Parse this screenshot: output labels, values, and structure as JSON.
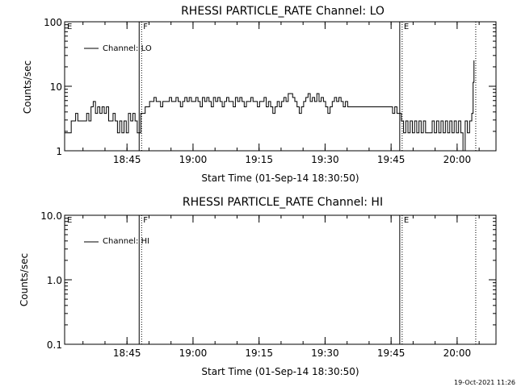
{
  "footer_timestamp": "19-Oct-2021 11:26",
  "chart_data": [
    {
      "type": "line",
      "title": "RHESSI PARTICLE_RATE Channel: LO",
      "xlabel": "Start Time (01-Sep-14 18:30:50)",
      "ylabel": "Counts/sec",
      "yscale": "log",
      "ylim": [
        1,
        100
      ],
      "xlim_minutes": [
        0,
        98
      ],
      "x_ticks": [
        {
          "minute": 14.17,
          "label": "18:45"
        },
        {
          "minute": 29.17,
          "label": "19:00"
        },
        {
          "minute": 44.17,
          "label": "19:15"
        },
        {
          "minute": 59.17,
          "label": "19:30"
        },
        {
          "minute": 74.17,
          "label": "19:45"
        },
        {
          "minute": 89.17,
          "label": "20:00"
        }
      ],
      "y_ticks": [
        {
          "value": 1,
          "label": "1"
        },
        {
          "value": 10,
          "label": "10"
        },
        {
          "value": 100,
          "label": "100"
        }
      ],
      "legend": {
        "placement": "top-left",
        "entries": [
          "Channel: LO"
        ]
      },
      "markers": [
        {
          "label": "E",
          "minute": 0,
          "style": "none"
        },
        {
          "label": "F",
          "minute": 17.3,
          "style": "solid-dotted"
        },
        {
          "label": "E",
          "minute": 76.5,
          "style": "solid-dotted"
        },
        {
          "label": "",
          "minute": 93.4,
          "style": "dotted"
        }
      ],
      "series": [
        {
          "name": "Channel: LO",
          "points": [
            [
              0.0,
              1.9
            ],
            [
              1.0,
              1.9
            ],
            [
              1.5,
              2.9
            ],
            [
              2.0,
              2.9
            ],
            [
              2.5,
              3.8
            ],
            [
              3.0,
              2.9
            ],
            [
              4.5,
              2.9
            ],
            [
              5.0,
              3.8
            ],
            [
              5.5,
              2.9
            ],
            [
              6.0,
              4.8
            ],
            [
              6.5,
              5.8
            ],
            [
              7.0,
              3.8
            ],
            [
              7.5,
              4.8
            ],
            [
              8.0,
              3.8
            ],
            [
              8.5,
              4.8
            ],
            [
              9.0,
              3.8
            ],
            [
              9.5,
              4.8
            ],
            [
              10.0,
              2.9
            ],
            [
              10.5,
              2.9
            ],
            [
              11.0,
              3.8
            ],
            [
              11.5,
              2.9
            ],
            [
              12.0,
              1.9
            ],
            [
              12.5,
              2.9
            ],
            [
              13.0,
              1.9
            ],
            [
              13.5,
              2.9
            ],
            [
              14.0,
              1.9
            ],
            [
              14.5,
              3.8
            ],
            [
              15.0,
              2.9
            ],
            [
              15.5,
              3.8
            ],
            [
              16.0,
              2.9
            ],
            [
              16.5,
              1.9
            ],
            [
              17.0,
              1.9
            ],
            [
              17.3,
              3.8
            ],
            [
              17.8,
              3.8
            ],
            [
              18.3,
              4.8
            ],
            [
              18.8,
              4.8
            ],
            [
              19.3,
              5.8
            ],
            [
              19.8,
              5.8
            ],
            [
              20.3,
              6.7
            ],
            [
              20.8,
              5.8
            ],
            [
              21.3,
              5.8
            ],
            [
              21.8,
              4.8
            ],
            [
              22.3,
              5.8
            ],
            [
              22.8,
              5.8
            ],
            [
              23.3,
              5.8
            ],
            [
              23.8,
              6.7
            ],
            [
              24.3,
              5.8
            ],
            [
              24.8,
              5.8
            ],
            [
              25.3,
              6.7
            ],
            [
              25.8,
              5.8
            ],
            [
              26.3,
              4.8
            ],
            [
              26.8,
              5.8
            ],
            [
              27.3,
              6.7
            ],
            [
              27.8,
              5.8
            ],
            [
              28.3,
              6.7
            ],
            [
              28.8,
              5.8
            ],
            [
              29.3,
              5.8
            ],
            [
              29.8,
              6.7
            ],
            [
              30.3,
              5.8
            ],
            [
              30.8,
              4.8
            ],
            [
              31.3,
              6.7
            ],
            [
              31.8,
              5.8
            ],
            [
              32.3,
              6.7
            ],
            [
              32.8,
              5.8
            ],
            [
              33.3,
              4.8
            ],
            [
              33.8,
              6.7
            ],
            [
              34.3,
              5.8
            ],
            [
              34.8,
              6.7
            ],
            [
              35.3,
              5.8
            ],
            [
              35.8,
              4.8
            ],
            [
              36.3,
              5.8
            ],
            [
              36.8,
              6.7
            ],
            [
              37.3,
              5.8
            ],
            [
              37.8,
              5.8
            ],
            [
              38.3,
              4.8
            ],
            [
              38.8,
              6.7
            ],
            [
              39.3,
              5.8
            ],
            [
              39.8,
              6.7
            ],
            [
              40.3,
              5.8
            ],
            [
              40.8,
              4.8
            ],
            [
              41.3,
              5.8
            ],
            [
              41.8,
              5.8
            ],
            [
              42.3,
              6.7
            ],
            [
              42.8,
              5.8
            ],
            [
              43.3,
              5.8
            ],
            [
              43.8,
              4.8
            ],
            [
              44.3,
              5.8
            ],
            [
              44.8,
              5.8
            ],
            [
              45.3,
              6.7
            ],
            [
              45.8,
              4.8
            ],
            [
              46.3,
              5.8
            ],
            [
              46.8,
              4.8
            ],
            [
              47.3,
              3.8
            ],
            [
              47.8,
              4.8
            ],
            [
              48.3,
              5.8
            ],
            [
              48.8,
              4.8
            ],
            [
              49.3,
              5.8
            ],
            [
              49.8,
              6.7
            ],
            [
              50.3,
              5.8
            ],
            [
              50.8,
              7.7
            ],
            [
              51.3,
              7.7
            ],
            [
              51.8,
              6.7
            ],
            [
              52.3,
              5.8
            ],
            [
              52.8,
              4.8
            ],
            [
              53.3,
              3.8
            ],
            [
              53.8,
              4.8
            ],
            [
              54.3,
              5.8
            ],
            [
              54.8,
              6.7
            ],
            [
              55.3,
              7.7
            ],
            [
              55.8,
              5.8
            ],
            [
              56.3,
              6.7
            ],
            [
              56.8,
              5.8
            ],
            [
              57.3,
              7.7
            ],
            [
              57.8,
              5.8
            ],
            [
              58.3,
              6.7
            ],
            [
              58.8,
              5.8
            ],
            [
              59.3,
              4.8
            ],
            [
              59.8,
              3.8
            ],
            [
              60.3,
              4.8
            ],
            [
              60.8,
              5.8
            ],
            [
              61.3,
              6.7
            ],
            [
              61.8,
              5.8
            ],
            [
              62.3,
              6.7
            ],
            [
              62.8,
              5.8
            ],
            [
              63.3,
              4.8
            ],
            [
              63.8,
              5.8
            ],
            [
              64.3,
              4.8
            ],
            [
              65.0,
              4.8
            ],
            [
              66.0,
              4.8
            ],
            [
              67.0,
              4.8
            ],
            [
              68.0,
              4.8
            ],
            [
              69.0,
              4.8
            ],
            [
              70.0,
              4.8
            ],
            [
              71.0,
              4.8
            ],
            [
              72.0,
              4.8
            ],
            [
              73.0,
              4.8
            ],
            [
              74.0,
              4.8
            ],
            [
              74.5,
              3.8
            ],
            [
              75.0,
              4.8
            ],
            [
              75.5,
              3.8
            ],
            [
              76.0,
              3.8
            ],
            [
              76.5,
              2.9
            ],
            [
              77.0,
              1.9
            ],
            [
              77.5,
              2.9
            ],
            [
              78.0,
              1.9
            ],
            [
              78.5,
              2.9
            ],
            [
              79.0,
              1.9
            ],
            [
              79.5,
              2.9
            ],
            [
              80.0,
              1.9
            ],
            [
              80.5,
              2.9
            ],
            [
              81.0,
              1.9
            ],
            [
              81.5,
              2.9
            ],
            [
              82.0,
              1.9
            ],
            [
              82.5,
              1.9
            ],
            [
              83.0,
              1.9
            ],
            [
              83.5,
              2.9
            ],
            [
              84.0,
              1.9
            ],
            [
              84.5,
              2.9
            ],
            [
              85.0,
              1.9
            ],
            [
              85.5,
              2.9
            ],
            [
              86.0,
              1.9
            ],
            [
              86.5,
              2.9
            ],
            [
              87.0,
              1.9
            ],
            [
              87.5,
              2.9
            ],
            [
              88.0,
              1.9
            ],
            [
              88.5,
              2.9
            ],
            [
              89.0,
              1.9
            ],
            [
              89.5,
              2.9
            ],
            [
              90.0,
              1.9
            ],
            [
              90.5,
              0.9
            ],
            [
              91.0,
              2.9
            ],
            [
              91.5,
              1.9
            ],
            [
              92.0,
              2.9
            ],
            [
              92.5,
              3.8
            ],
            [
              92.8,
              11.5
            ],
            [
              93.0,
              25.0
            ]
          ]
        }
      ]
    },
    {
      "type": "line",
      "title": "RHESSI PARTICLE_RATE Channel: HI",
      "xlabel": "Start Time (01-Sep-14 18:30:50)",
      "ylabel": "Counts/sec",
      "yscale": "log",
      "ylim": [
        0.1,
        10
      ],
      "xlim_minutes": [
        0,
        98
      ],
      "x_ticks": [
        {
          "minute": 14.17,
          "label": "18:45"
        },
        {
          "minute": 29.17,
          "label": "19:00"
        },
        {
          "minute": 44.17,
          "label": "19:15"
        },
        {
          "minute": 59.17,
          "label": "19:30"
        },
        {
          "minute": 74.17,
          "label": "19:45"
        },
        {
          "minute": 89.17,
          "label": "20:00"
        }
      ],
      "y_ticks": [
        {
          "value": 0.1,
          "label": "0.1"
        },
        {
          "value": 1,
          "label": "1.0"
        },
        {
          "value": 10,
          "label": "10.0"
        }
      ],
      "legend": {
        "placement": "top-left",
        "entries": [
          "Channel: HI"
        ]
      },
      "markers": [
        {
          "label": "E",
          "minute": 0,
          "style": "none"
        },
        {
          "label": "F",
          "minute": 17.3,
          "style": "solid-dotted"
        },
        {
          "label": "E",
          "minute": 76.5,
          "style": "solid-dotted"
        },
        {
          "label": "",
          "minute": 93.4,
          "style": "dotted"
        }
      ],
      "series": [
        {
          "name": "Channel: HI",
          "points": []
        }
      ]
    }
  ]
}
